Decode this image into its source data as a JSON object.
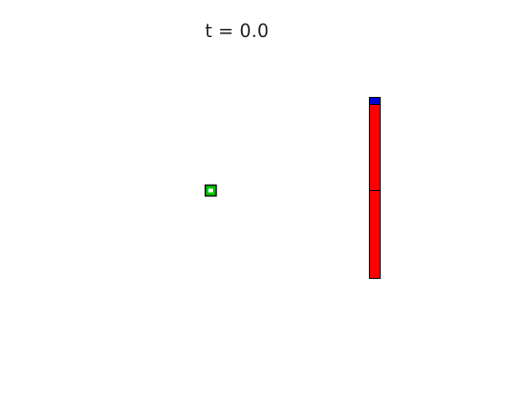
{
  "title": {
    "time_text": "t = 0.0"
  },
  "colors": {
    "background": "#ffffff",
    "agent_fill": "#00cc00",
    "agent_inner": "#ffffff",
    "bar_fill": "#ff0000",
    "cap_fill": "#0000cc",
    "outline": "#000000",
    "text": "#222222"
  },
  "scene": {
    "agent": {
      "name": "green-agent-square"
    },
    "column": {
      "segments": [
        "upper-segment",
        "lower-segment"
      ],
      "cap": "blue-cap"
    }
  }
}
